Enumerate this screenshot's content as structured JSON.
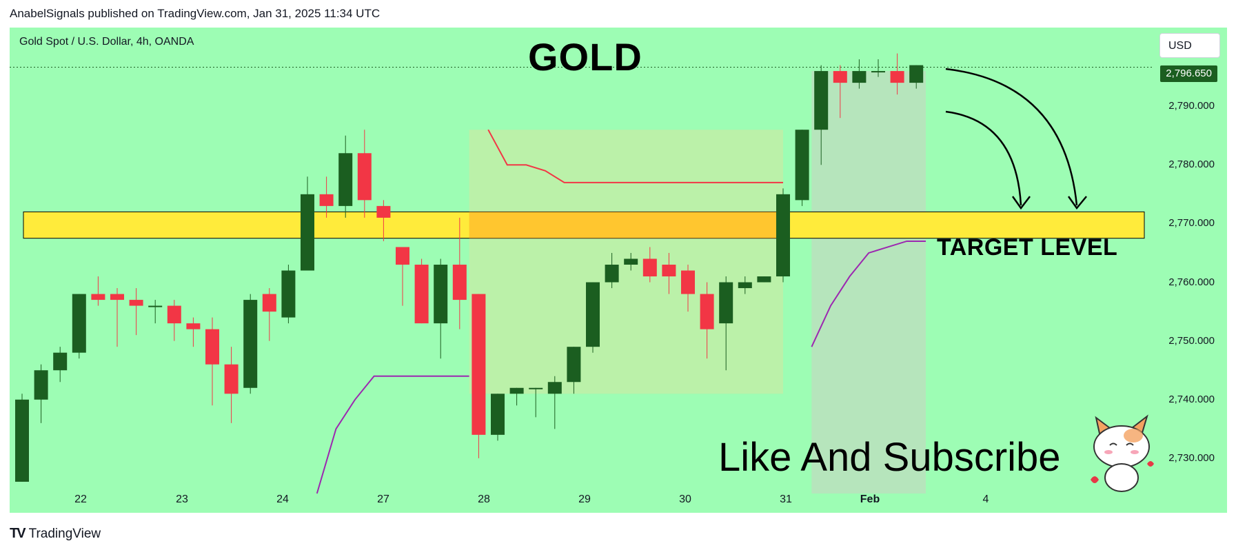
{
  "header": {
    "text": "AnabelSignals published on TradingView.com, Jan 31, 2025 11:34 UTC"
  },
  "instrument": "Gold Spot / U.S. Dollar, 4h, OANDA",
  "currency": "USD",
  "current_price": "2,796.650",
  "annotations": {
    "title": "GOLD",
    "target": "TARGET LEVEL",
    "cta": "Like And Subscribe"
  },
  "footer": {
    "brand": "TradingView",
    "logo": "TV"
  },
  "icons": {
    "cat": "cat-sticker-icon",
    "arrows": "curved-arrow-icon"
  },
  "colors": {
    "background": "#9dfdb4",
    "up": "#1b5e20",
    "down": "#f23645",
    "target_zone": "#ffeb3b",
    "stop_line": "#f23645",
    "trail_line": "#9c27b0"
  },
  "chart_data": {
    "type": "candlestick",
    "title": "GOLD",
    "ylim": [
      2724,
      2802
    ],
    "yticks": [
      "2,730.000",
      "2,740.000",
      "2,750.000",
      "2,760.000",
      "2,770.000",
      "2,780.000",
      "2,790.000"
    ],
    "ytick_values": [
      2730,
      2740,
      2750,
      2760,
      2770,
      2780,
      2790
    ],
    "xticks": [
      "22",
      "23",
      "24",
      "27",
      "28",
      "29",
      "30",
      "31",
      "Feb",
      "4"
    ],
    "target_zone": [
      2767.5,
      2772
    ],
    "candles": [
      [
        2726,
        2740,
        2726,
        2741
      ],
      [
        2740,
        2745,
        2736,
        2746
      ],
      [
        2745,
        2748,
        2743,
        2749
      ],
      [
        2748,
        2758,
        2747,
        2758
      ],
      [
        2758,
        2757,
        2756,
        2761
      ],
      [
        2758,
        2757,
        2749,
        2759
      ],
      [
        2757,
        2756,
        2751,
        2759
      ],
      [
        2756,
        2756,
        2753,
        2757
      ],
      [
        2756,
        2753,
        2750,
        2757
      ],
      [
        2753,
        2752,
        2749,
        2754
      ],
      [
        2752,
        2746,
        2739,
        2754
      ],
      [
        2746,
        2741,
        2736,
        2749
      ],
      [
        2742,
        2757,
        2741,
        2758
      ],
      [
        2758,
        2755,
        2750,
        2759
      ],
      [
        2754,
        2762,
        2753,
        2763
      ],
      [
        2762,
        2775,
        2762,
        2778
      ],
      [
        2775,
        2773,
        2771,
        2778
      ],
      [
        2773,
        2782,
        2771,
        2785
      ],
      [
        2782,
        2774,
        2771,
        2786
      ],
      [
        2773,
        2771,
        2767,
        2774
      ],
      [
        2766,
        2763,
        2756,
        2766
      ],
      [
        2763,
        2753,
        2753,
        2764
      ],
      [
        2753,
        2763,
        2747,
        2764
      ],
      [
        2763,
        2757,
        2752,
        2771
      ],
      [
        2758,
        2734,
        2730,
        2758
      ],
      [
        2734,
        2741,
        2733,
        2741
      ],
      [
        2741,
        2742,
        2739,
        2742
      ],
      [
        2742,
        2742,
        2737,
        2742
      ],
      [
        2741,
        2743,
        2735,
        2744
      ],
      [
        2743,
        2749,
        2741,
        2749
      ],
      [
        2749,
        2760,
        2748,
        2760
      ],
      [
        2760,
        2763,
        2759,
        2765
      ],
      [
        2763,
        2764,
        2762,
        2765
      ],
      [
        2764,
        2761,
        2760,
        2766
      ],
      [
        2763,
        2761,
        2758,
        2765
      ],
      [
        2762,
        2758,
        2755,
        2763
      ],
      [
        2758,
        2752,
        2747,
        2760
      ],
      [
        2753,
        2760,
        2745,
        2761
      ],
      [
        2759,
        2760,
        2758,
        2761
      ],
      [
        2760,
        2761,
        2760,
        2761
      ],
      [
        2761,
        2775,
        2760,
        2776
      ],
      [
        2774,
        2786,
        2773,
        2786
      ],
      [
        2786,
        2796,
        2780,
        2797
      ],
      [
        2796,
        2794,
        2788,
        2797
      ],
      [
        2794,
        2796,
        2793,
        2798
      ],
      [
        2796,
        2796,
        2795,
        2798
      ],
      [
        2796,
        2794,
        2792,
        2799
      ],
      [
        2794,
        2797,
        2793,
        2797
      ]
    ],
    "stop_line": [
      [
        24.5,
        2786
      ],
      [
        25.5,
        2780
      ],
      [
        26.5,
        2780
      ],
      [
        27.5,
        2779
      ],
      [
        28.5,
        2777
      ],
      [
        40,
        2777
      ]
    ],
    "trail_lines": [
      [
        [
          15.5,
          2724
        ],
        [
          16.5,
          2735
        ],
        [
          17.5,
          2740
        ],
        [
          18.5,
          2744
        ],
        [
          23.5,
          2744
        ]
      ],
      [
        [
          41.5,
          2749
        ],
        [
          42.5,
          2756
        ],
        [
          43.5,
          2761
        ],
        [
          44.5,
          2765
        ],
        [
          45.5,
          2766
        ],
        [
          46.5,
          2767
        ],
        [
          47.5,
          2767
        ]
      ]
    ]
  }
}
